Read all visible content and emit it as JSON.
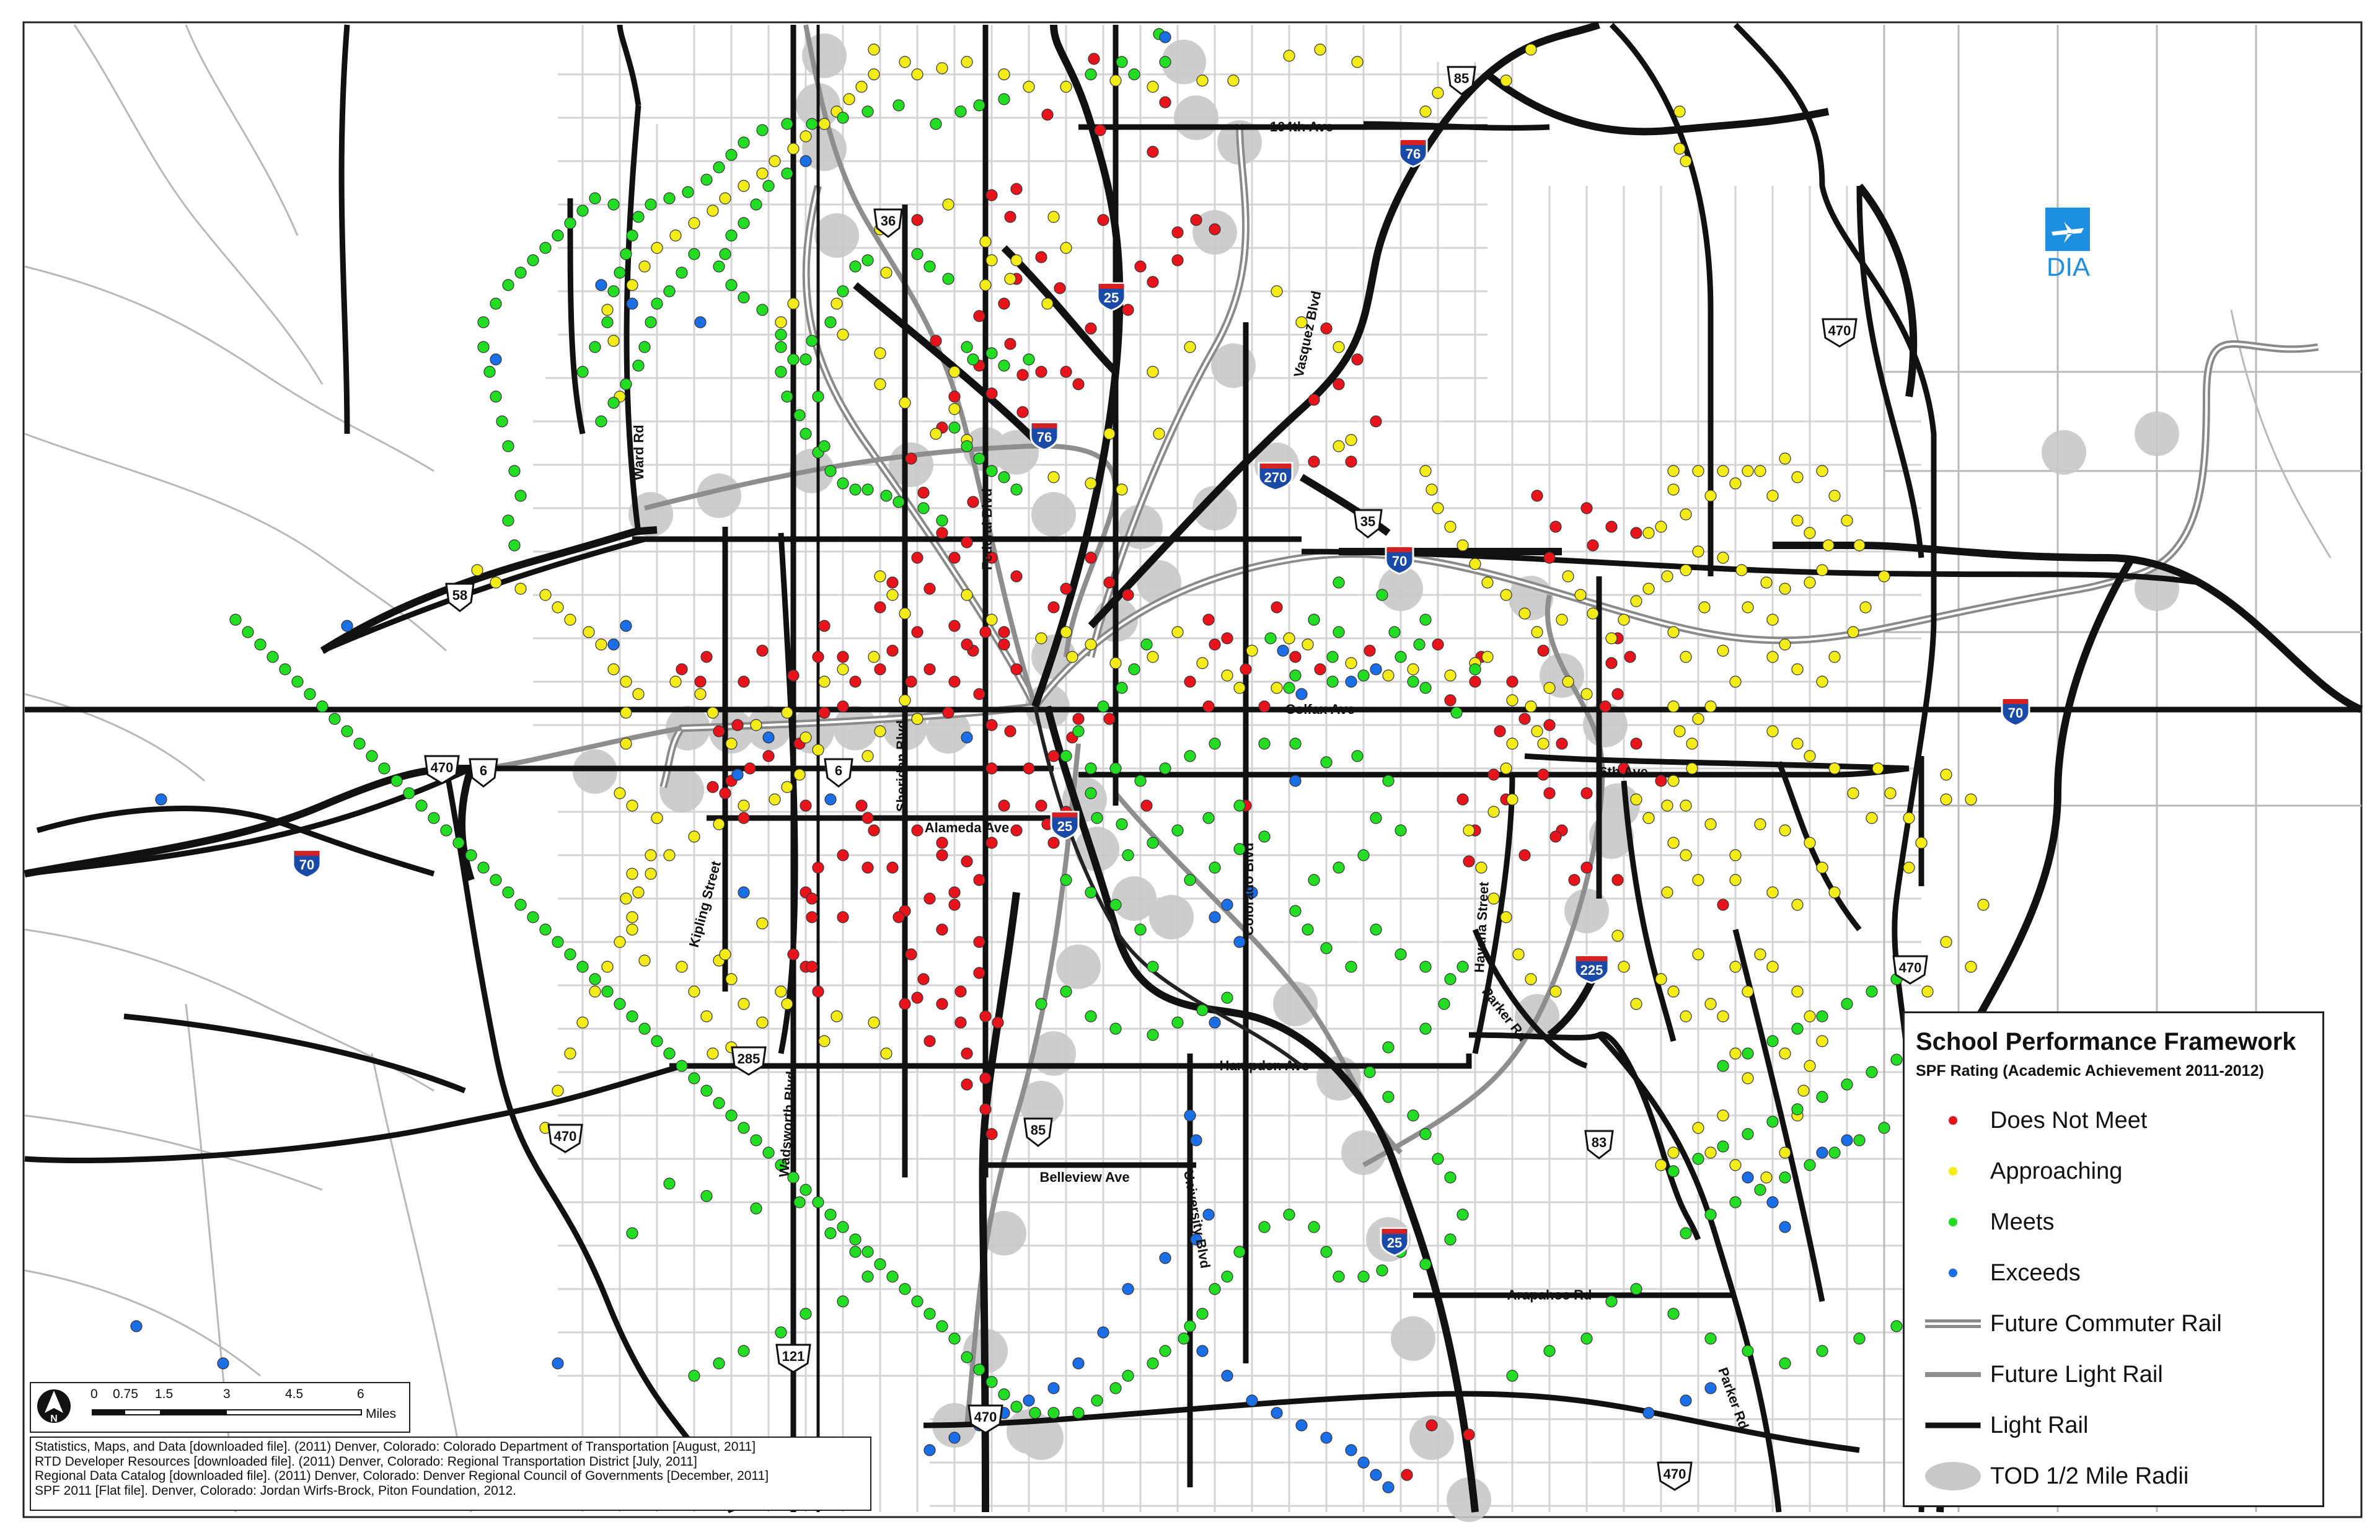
{
  "map": {
    "airport_label": "DIA",
    "roads": [
      {
        "id": "104th",
        "text": "104th Ave"
      },
      {
        "id": "vasquez",
        "text": "Vasquez Blvd"
      },
      {
        "id": "ward",
        "text": "Ward Rd"
      },
      {
        "id": "federal",
        "text": "Federal Blvd"
      },
      {
        "id": "colfax",
        "text": "Colfax Ave"
      },
      {
        "id": "sixth",
        "text": "6th Ave"
      },
      {
        "id": "sheridan",
        "text": "Sheridan Blvd"
      },
      {
        "id": "alameda",
        "text": "Alameda Ave"
      },
      {
        "id": "kipling",
        "text": "Kipling Street"
      },
      {
        "id": "colorado",
        "text": "Colorado Blvd"
      },
      {
        "id": "havana",
        "text": "Havana Street"
      },
      {
        "id": "parker1",
        "text": "Parker Rd"
      },
      {
        "id": "hampden",
        "text": "Hampden Ave"
      },
      {
        "id": "wadsworth",
        "text": "Wadsworth Blvd"
      },
      {
        "id": "belleview",
        "text": "Belleview Ave"
      },
      {
        "id": "university",
        "text": "University Blvd"
      },
      {
        "id": "arapahoe",
        "text": "Arapahoe Rd"
      },
      {
        "id": "parker2",
        "text": "Parker Rd"
      }
    ],
    "shields": [
      {
        "id": "us85n",
        "type": "us",
        "text": "85"
      },
      {
        "id": "i76e",
        "type": "interstate",
        "text": "76"
      },
      {
        "id": "us36",
        "type": "us",
        "text": "36"
      },
      {
        "id": "i25n",
        "type": "interstate",
        "text": "25"
      },
      {
        "id": "i76w",
        "type": "interstate",
        "text": "76"
      },
      {
        "id": "i270",
        "type": "interstate",
        "text": "270"
      },
      {
        "id": "us35",
        "type": "us",
        "text": "35"
      },
      {
        "id": "i70c",
        "type": "interstate",
        "text": "70"
      },
      {
        "id": "us58",
        "type": "us",
        "text": "58"
      },
      {
        "id": "s470w",
        "type": "us",
        "text": "470"
      },
      {
        "id": "us6w",
        "type": "us",
        "text": "6"
      },
      {
        "id": "us6c",
        "type": "us",
        "text": "6"
      },
      {
        "id": "i70w",
        "type": "interstate",
        "text": "70"
      },
      {
        "id": "i25c",
        "type": "interstate",
        "text": "25"
      },
      {
        "id": "i70e",
        "type": "interstate",
        "text": "70"
      },
      {
        "id": "s470ne",
        "type": "us",
        "text": "470"
      },
      {
        "id": "i225",
        "type": "interstate",
        "text": "225"
      },
      {
        "id": "s470e",
        "type": "us",
        "text": "470"
      },
      {
        "id": "us285",
        "type": "us",
        "text": "285"
      },
      {
        "id": "s470sw",
        "type": "us",
        "text": "470"
      },
      {
        "id": "us85s",
        "type": "us",
        "text": "85"
      },
      {
        "id": "us83",
        "type": "us",
        "text": "83"
      },
      {
        "id": "i25s",
        "type": "interstate",
        "text": "25"
      },
      {
        "id": "us121",
        "type": "us",
        "text": "121"
      },
      {
        "id": "s470s",
        "type": "us",
        "text": "470"
      },
      {
        "id": "s470se",
        "type": "us",
        "text": "470"
      }
    ],
    "colors": {
      "does_not_meet": "#e8141b",
      "approaching": "#f4ec1a",
      "meets": "#22dd22",
      "exceeds": "#1a6ee6",
      "light_rail": "#111111",
      "future_rail": "#909090",
      "tod": "#c8c8c8",
      "interstate": "#1a4aa8",
      "airport": "#1e8fe0"
    }
  },
  "legend": {
    "title": "School Performance Framework",
    "subtitle": "SPF Rating (Academic Achievement 2011-2012)",
    "items": [
      {
        "label": "Does Not Meet",
        "symbol": "dot",
        "color": "#e8141b"
      },
      {
        "label": "Approaching",
        "symbol": "dot",
        "color": "#f4ec1a"
      },
      {
        "label": "Meets",
        "symbol": "dot",
        "color": "#22dd22"
      },
      {
        "label": "Exceeds",
        "symbol": "dot",
        "color": "#1a6ee6"
      },
      {
        "label": "Future Commuter Rail",
        "symbol": "double-line"
      },
      {
        "label": "Future Light Rail",
        "symbol": "single-gray-line"
      },
      {
        "label": "Light Rail",
        "symbol": "black-line"
      },
      {
        "label": "TOD 1/2 Mile Radii",
        "symbol": "ellipse"
      }
    ]
  },
  "scale": {
    "ticks": [
      "0",
      "0.75",
      "1.5",
      "3",
      "4.5",
      "6"
    ],
    "unit": "Miles"
  },
  "credits": [
    "Statistics, Maps, and Data [downloaded file]. (2011) Denver, Colorado: Colorado Department of Transportation [August, 2011]",
    "RTD Developer Resources [downloaded file]. (2011) Denver, Colorado: Regional Transportation District [July, 2011]",
    "Regional Data Catalog [downloaded file]. (2011) Denver, Colorado: Denver Regional Council of Governments [December, 2011]",
    "SPF 2011 [Flat file]. Denver, Colorado: Jordan Wirfs-Brock, Piton Foundation, 2012."
  ]
}
